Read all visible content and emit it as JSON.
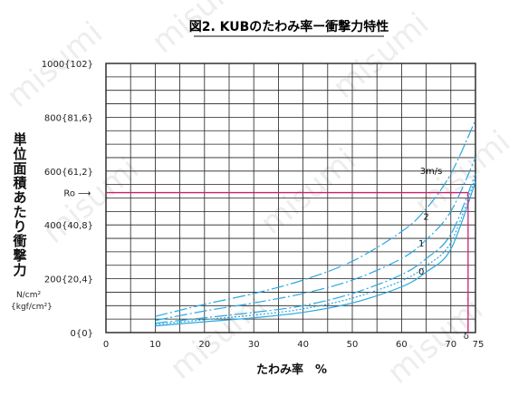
{
  "chart_data": {
    "type": "line",
    "title": "図2. KUBのたわみ率ー衝撃力特性",
    "ylabel_chars": [
      "単",
      "位",
      "面",
      "積",
      "あ",
      "た",
      "り",
      "衝",
      "撃",
      "力"
    ],
    "y_unit_lines": [
      "N/cm²",
      "{kgf/cm²}"
    ],
    "xlabel": "たわみ率　%",
    "xlim": [
      0,
      75
    ],
    "ylim": [
      0,
      1000
    ],
    "grid": true,
    "x_ticks": [
      0,
      10,
      20,
      30,
      40,
      50,
      60,
      70,
      75
    ],
    "y_ticks": [
      {
        "value": 0,
        "label": "0{0}"
      },
      {
        "value": 200,
        "label": "200{20,4}"
      },
      {
        "value": 400,
        "label": "400{40,8}"
      },
      {
        "value": 600,
        "label": "600{61,2}"
      },
      {
        "value": 800,
        "label": "800{81,6}"
      },
      {
        "value": 1000,
        "label": "1000{102}"
      }
    ],
    "series": [
      {
        "name": "3m/s",
        "style": "dash",
        "x": [
          10,
          20,
          30,
          40,
          50,
          60,
          65,
          70,
          75
        ],
        "values": [
          60,
          105,
          145,
          195,
          265,
          375,
          460,
          590,
          790
        ]
      },
      {
        "name": "2",
        "style": "dash",
        "x": [
          10,
          20,
          30,
          40,
          50,
          60,
          65,
          70,
          75
        ],
        "values": [
          45,
          80,
          110,
          145,
          195,
          275,
          345,
          450,
          650
        ]
      },
      {
        "name": "1",
        "style": "dash",
        "x": [
          10,
          20,
          30,
          40,
          50,
          60,
          65,
          70,
          75
        ],
        "values": [
          35,
          55,
          75,
          100,
          145,
          215,
          275,
          365,
          590
        ]
      },
      {
        "name": "0",
        "style": "solid",
        "x": [
          10,
          20,
          30,
          40,
          50,
          60,
          65,
          70,
          75
        ],
        "values": [
          25,
          40,
          55,
          75,
          110,
          170,
          225,
          310,
          560
        ]
      },
      {
        "name": "",
        "style": "dot",
        "x": [
          10,
          20,
          30,
          40,
          50,
          60,
          65,
          70,
          75
        ],
        "values": [
          30,
          48,
          65,
          88,
          128,
          192,
          248,
          335,
          575
        ]
      }
    ],
    "annotations": {
      "ro_label": "Ro",
      "ro_arrow": "⟶",
      "ro_value": 520,
      "delta_label": "δ",
      "delta_value": 73.5
    },
    "colors": {
      "series": "#29a8e0",
      "marker": "#cc1f6e",
      "grid": "#222222"
    }
  },
  "watermark": "misumi"
}
